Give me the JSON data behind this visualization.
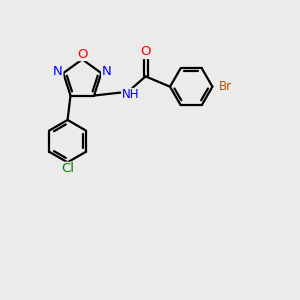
{
  "bg_color": "#ebebeb",
  "bond_color": "#000000",
  "bond_width": 1.6,
  "atom_colors": {
    "O": "#ff0000",
    "N": "#0000ff",
    "Cl": "#008000",
    "Br": "#b05000",
    "C": "#000000",
    "H": "#555555"
  },
  "font_size": 8.5
}
